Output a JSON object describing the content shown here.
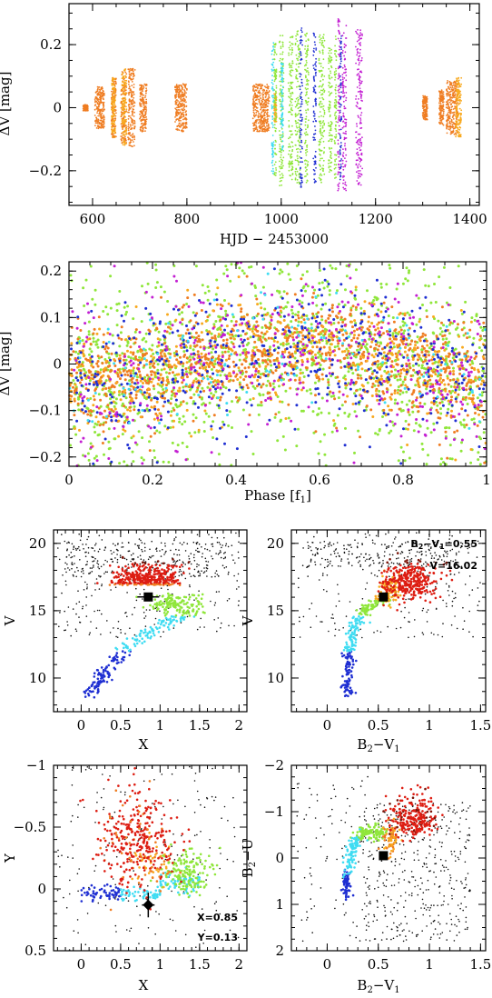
{
  "colors": {
    "orange": "#ef7d22",
    "amber": "#f8a91e",
    "green": "#8fe63a",
    "blue": "#1f2fd2",
    "cyan": "#3fdcf2",
    "magenta": "#c31fd2",
    "red": "#dd1d12",
    "darkred": "#7a1408",
    "black": "#111111"
  },
  "chart_data": [
    {
      "id": "lightcurve",
      "type": "scatter",
      "xlabel": "HJD − 2453000",
      "ylabel": "ΔV [mag]",
      "xlim": [
        550,
        1420
      ],
      "ylim": [
        0.33,
        -0.31
      ],
      "xticks": [
        600,
        800,
        1000,
        1200,
        1400
      ],
      "yticks": [
        -0.2,
        0,
        0.2
      ],
      "ytick_labels": [
        "−0.2",
        "0",
        "0.2"
      ],
      "series": [
        {
          "color": "orange",
          "segments": [
            [
              580,
              590,
              0.01
            ],
            [
              605,
              625,
              0.07
            ],
            [
              640,
              650,
              0.1
            ],
            [
              660,
              672,
              0.12
            ],
            [
              675,
              690,
              0.13
            ],
            [
              700,
              715,
              0.08
            ],
            [
              775,
              800,
              0.08
            ],
            [
              940,
              975,
              0.08
            ],
            [
              1300,
              1310,
              0.04
            ],
            [
              1335,
              1345,
              0.06
            ],
            [
              1350,
              1375,
              0.09
            ]
          ]
        },
        {
          "color": "amber",
          "segments": [
            [
              640,
              648,
              0.1
            ],
            [
              662,
              672,
              0.13
            ],
            [
              1370,
              1382,
              0.1
            ],
            [
              985,
              990,
              0.05
            ]
          ]
        },
        {
          "color": "green",
          "segments": [
            [
              985,
              990,
              0.23
            ],
            [
              996,
              1005,
              0.26
            ],
            [
              1015,
              1025,
              0.24
            ],
            [
              1030,
              1040,
              0.26
            ],
            [
              1050,
              1058,
              0.25
            ],
            [
              1080,
              1092,
              0.25
            ],
            [
              1100,
              1108,
              0.22
            ],
            [
              1113,
              1117,
              0.24
            ]
          ]
        },
        {
          "color": "blue",
          "segments": [
            [
              1040,
              1045,
              0.27
            ],
            [
              1068,
              1074,
              0.25
            ],
            [
              1124,
              1128,
              0.25
            ]
          ]
        },
        {
          "color": "cyan",
          "segments": [
            [
              980,
              984,
              0.22
            ],
            [
              1000,
              1004,
              0.15
            ]
          ]
        },
        {
          "color": "magenta",
          "segments": [
            [
              1120,
              1124,
              0.3
            ],
            [
              1130,
              1138,
              0.28
            ],
            [
              1158,
              1172,
              0.26
            ]
          ]
        }
      ]
    },
    {
      "id": "phase",
      "type": "scatter",
      "xlabel": "Phase [f1]",
      "ylabel": "ΔV [mag]",
      "xlim": [
        0,
        1
      ],
      "ylim": [
        0.22,
        -0.22
      ],
      "xticks": [
        0,
        0.2,
        0.4,
        0.6,
        0.8,
        1
      ],
      "xtick_labels": [
        "0",
        "0.2",
        "0.4",
        "0.6",
        "0.8",
        "1"
      ],
      "yticks": [
        -0.2,
        -0.1,
        0,
        0.1,
        0.2
      ],
      "ytick_labels": [
        "−0.2",
        "−0.1",
        "0",
        "0.1",
        "0.2"
      ],
      "amplitude": 0.04,
      "series": [
        {
          "color": "green",
          "count": 1300,
          "scatter": 0.1
        },
        {
          "color": "orange",
          "count": 1100,
          "scatter": 0.055
        },
        {
          "color": "amber",
          "count": 500,
          "scatter": 0.06
        },
        {
          "color": "blue",
          "count": 450,
          "scatter": 0.07
        },
        {
          "color": "magenta",
          "count": 350,
          "scatter": 0.09
        },
        {
          "color": "cyan",
          "count": 120,
          "scatter": 0.08
        }
      ]
    },
    {
      "id": "cmd-x",
      "type": "scatter",
      "xlabel": "X",
      "ylabel": "V",
      "xlim": [
        -0.35,
        2.1
      ],
      "ylim": [
        21,
        7.5
      ],
      "xticks": [
        0,
        0.5,
        1,
        1.5,
        2
      ],
      "xtick_labels": [
        "0",
        "0.5",
        "1",
        "1.5",
        "2"
      ],
      "yticks": [
        10,
        15,
        20
      ],
      "marker": {
        "x": 0.85,
        "y": 16.02,
        "shape": "square"
      }
    },
    {
      "id": "cmd-bv",
      "type": "scatter",
      "xlabel": "B2−V1",
      "ylabel": "V",
      "xlim": [
        -0.35,
        1.55
      ],
      "ylim": [
        21,
        7.5
      ],
      "xticks": [
        0,
        0.5,
        1,
        1.5
      ],
      "xtick_labels": [
        "0",
        "0.5",
        "1",
        "1.5"
      ],
      "yticks": [
        10,
        15,
        20
      ],
      "marker": {
        "x": 0.55,
        "y": 16.02,
        "shape": "square"
      },
      "annotation": {
        "line1": "B2−V1=0.55",
        "line2": "V=16.02"
      }
    },
    {
      "id": "ccd-xy",
      "type": "scatter",
      "xlabel": "X",
      "ylabel": "Y",
      "xlim": [
        -0.35,
        2.1
      ],
      "ylim": [
        -1,
        0.5
      ],
      "xticks": [
        0,
        0.5,
        1,
        1.5,
        2
      ],
      "xtick_labels": [
        "0",
        "0.5",
        "1",
        "1.5",
        "2"
      ],
      "yticks": [
        -1,
        -0.5,
        0,
        0.5
      ],
      "ytick_labels": [
        "−1",
        "−0.5",
        "0",
        "0.5"
      ],
      "marker": {
        "x": 0.85,
        "y": 0.13,
        "shape": "diamond",
        "xerr": 0.08,
        "yerr": 0.1
      },
      "annotation": {
        "line1": "X=0.85",
        "line2": "Y=0.13"
      }
    },
    {
      "id": "ccd-bu",
      "type": "scatter",
      "xlabel": "B2−V1",
      "ylabel": "B2−U",
      "xlim": [
        -0.35,
        1.55
      ],
      "ylim": [
        -2,
        2
      ],
      "xticks": [
        0,
        0.5,
        1,
        1.5
      ],
      "xtick_labels": [
        "0",
        "0.5",
        "1",
        "1.5"
      ],
      "yticks": [
        -2,
        -1,
        0,
        1,
        2
      ],
      "ytick_labels": [
        "−2",
        "−1",
        "0",
        "1",
        "2"
      ],
      "marker": {
        "x": 0.55,
        "y": -0.05,
        "shape": "square"
      }
    }
  ]
}
